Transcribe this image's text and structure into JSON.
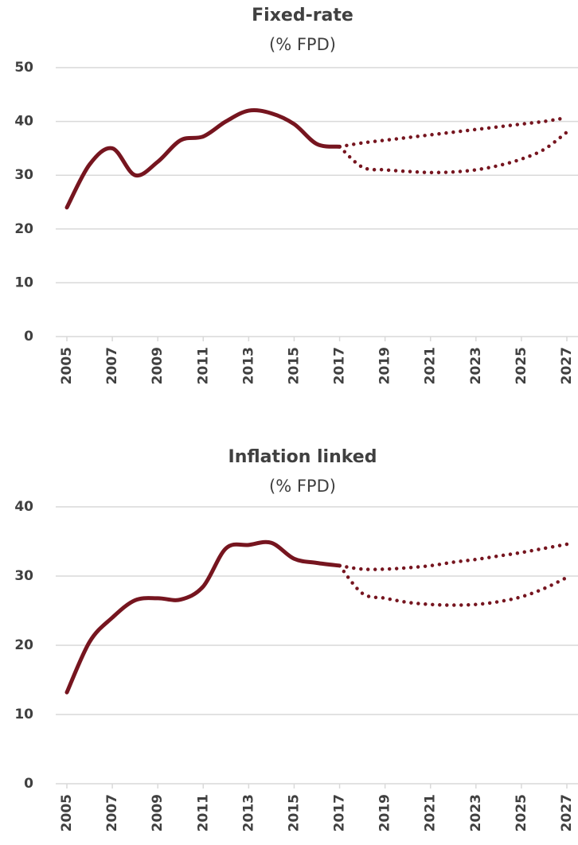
{
  "chart_data": [
    {
      "type": "line",
      "title": "Fixed-rate",
      "subtitle": "(% FPD)",
      "x": [
        2005,
        2006,
        2007,
        2008,
        2009,
        2010,
        2011,
        2012,
        2013,
        2014,
        2015,
        2016,
        2017,
        2018,
        2019,
        2020,
        2021,
        2022,
        2023,
        2024,
        2025,
        2026,
        2027
      ],
      "xlim": [
        2005,
        2027
      ],
      "xticks": [
        2005,
        2007,
        2009,
        2011,
        2013,
        2015,
        2017,
        2019,
        2021,
        2023,
        2025,
        2027
      ],
      "ylim": [
        0,
        50
      ],
      "yticks": [
        0,
        10,
        20,
        30,
        40,
        50
      ],
      "grid": true,
      "series": [
        {
          "color": "#76151f",
          "style": "solid",
          "values": [
            24,
            32,
            35,
            30,
            32.5,
            36.5,
            37.2,
            40,
            42,
            41.5,
            39.5,
            35.8,
            35.3,
            null,
            null,
            null,
            null,
            null,
            null,
            null,
            null,
            null,
            null
          ]
        },
        {
          "color": "#76151f",
          "style": "dotted",
          "values": [
            null,
            null,
            null,
            null,
            null,
            null,
            null,
            null,
            null,
            null,
            null,
            null,
            35.3,
            36,
            36.5,
            37,
            37.5,
            38,
            38.5,
            39,
            39.5,
            40,
            40.7
          ]
        },
        {
          "color": "#76151f",
          "style": "dotted",
          "values": [
            null,
            null,
            null,
            null,
            null,
            null,
            null,
            null,
            null,
            null,
            null,
            null,
            35.3,
            31.5,
            31,
            30.7,
            30.5,
            30.6,
            31,
            31.8,
            33,
            34.8,
            38
          ]
        }
      ]
    },
    {
      "type": "line",
      "title": "Inflation linked",
      "subtitle": "(% FPD)",
      "x": [
        2005,
        2006,
        2007,
        2008,
        2009,
        2010,
        2011,
        2012,
        2013,
        2014,
        2015,
        2016,
        2017,
        2018,
        2019,
        2020,
        2021,
        2022,
        2023,
        2024,
        2025,
        2026,
        2027
      ],
      "xlim": [
        2005,
        2027
      ],
      "xticks": [
        2005,
        2007,
        2009,
        2011,
        2013,
        2015,
        2017,
        2019,
        2021,
        2023,
        2025,
        2027
      ],
      "ylim": [
        0,
        40
      ],
      "yticks": [
        0,
        10,
        20,
        30,
        40
      ],
      "grid": true,
      "series": [
        {
          "color": "#76151f",
          "style": "solid",
          "values": [
            13.2,
            20.5,
            24,
            26.5,
            26.8,
            26.6,
            28.5,
            34,
            34.5,
            34.8,
            32.5,
            31.9,
            31.5,
            null,
            null,
            null,
            null,
            null,
            null,
            null,
            null,
            null,
            null
          ]
        },
        {
          "color": "#76151f",
          "style": "dotted",
          "values": [
            null,
            null,
            null,
            null,
            null,
            null,
            null,
            null,
            null,
            null,
            null,
            null,
            31.5,
            31,
            31,
            31.2,
            31.5,
            32,
            32.4,
            32.9,
            33.4,
            34,
            34.6
          ]
        },
        {
          "color": "#76151f",
          "style": "dotted",
          "values": [
            null,
            null,
            null,
            null,
            null,
            null,
            null,
            null,
            null,
            null,
            null,
            null,
            31.5,
            27.5,
            26.8,
            26.2,
            25.9,
            25.8,
            25.9,
            26.3,
            27,
            28.2,
            29.8
          ]
        }
      ]
    }
  ]
}
